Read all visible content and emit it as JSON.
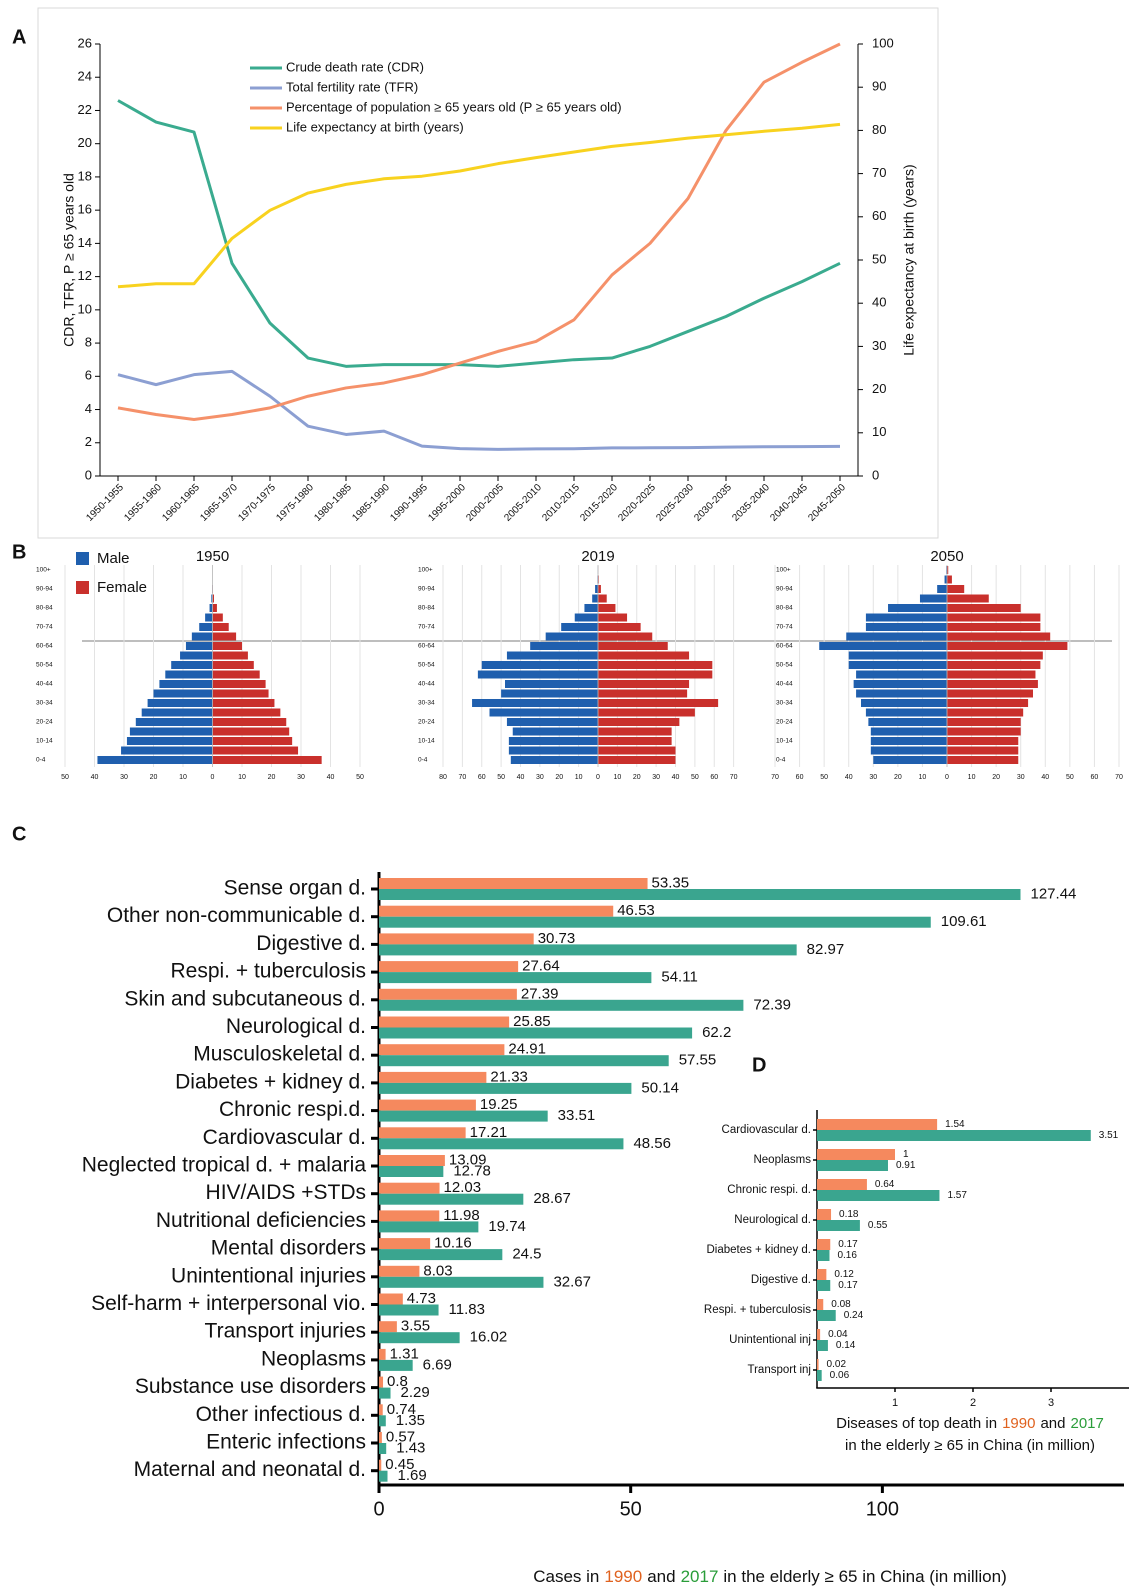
{
  "chart_data": [
    {
      "type": "line",
      "panel": "A",
      "categories": [
        "1950-1955",
        "1955-1960",
        "1960-1965",
        "1965-1970",
        "1970-1975",
        "1975-1980",
        "1980-1985",
        "1985-1990",
        "1990-1995",
        "1995-2000",
        "2000-2005",
        "2005-2010",
        "2010-2015",
        "2015-2020",
        "2020-2025",
        "2025-2030",
        "2030-2035",
        "2035-2040",
        "2040-2045",
        "2045-2050"
      ],
      "ylabel": "CDR, TFR, P ≥ 65 years old",
      "y2label": "Life expectancy at birth (years)",
      "ylim": [
        0,
        26
      ],
      "yticks": [
        0,
        2,
        4,
        6,
        8,
        10,
        12,
        14,
        16,
        18,
        20,
        22,
        24,
        26
      ],
      "y2lim": [
        0,
        100
      ],
      "y2ticks": [
        0,
        10,
        20,
        30,
        40,
        50,
        60,
        70,
        80,
        90,
        100
      ],
      "series": [
        {
          "name": "Crude death rate (CDR)",
          "color": "#3aab8f",
          "values": [
            22.6,
            21.3,
            20.7,
            12.8,
            9.2,
            7.1,
            6.6,
            6.7,
            6.7,
            6.7,
            6.6,
            6.8,
            7.0,
            7.1,
            7.8,
            8.7,
            9.6,
            10.7,
            11.7,
            12.8
          ]
        },
        {
          "name": "Total fertility rate (TFR)",
          "color": "#8c9fd2",
          "values": [
            6.1,
            5.5,
            6.1,
            6.3,
            4.8,
            3.0,
            2.5,
            2.7,
            1.8,
            1.65,
            1.6,
            1.63,
            1.64,
            1.69,
            1.7,
            1.71,
            1.74,
            1.76,
            1.77,
            1.78
          ]
        },
        {
          "name": "Percentage of population ≥ 65 years old (P ≥ 65 years old)",
          "color": "#f5916a",
          "values": [
            4.1,
            3.7,
            3.4,
            3.7,
            4.1,
            4.8,
            5.3,
            5.6,
            6.1,
            6.8,
            7.5,
            8.1,
            9.4,
            12.1,
            14.0,
            16.7,
            20.8,
            23.7,
            24.9,
            26.0
          ]
        },
        {
          "name": "Life expectancy at birth (years)",
          "color": "#f8d21f",
          "axis": "y2",
          "values": [
            43.8,
            44.5,
            44.5,
            55.0,
            61.5,
            65.5,
            67.5,
            68.8,
            69.4,
            70.6,
            72.3,
            73.7,
            75.0,
            76.3,
            77.2,
            78.2,
            79.0,
            79.8,
            80.5,
            81.4
          ]
        }
      ]
    },
    {
      "type": "pyramid",
      "panel": "B",
      "categories": [
        "0-4",
        null,
        "10-14",
        null,
        "20-24",
        null,
        "30-34",
        null,
        "40-44",
        null,
        "50-54",
        null,
        "60-64",
        null,
        "70-74",
        null,
        "80-84",
        null,
        "90-94",
        null,
        "100+"
      ],
      "series": [
        {
          "name": "Male",
          "color": "#1f5fae"
        },
        {
          "name": "Female",
          "color": "#c9302c"
        }
      ],
      "pyramids": [
        {
          "title": "1950",
          "xlim": [
            -50,
            50
          ],
          "xticks": [
            {
              "value": -50,
              "label": "50"
            },
            {
              "value": -40,
              "label": "40"
            },
            {
              "value": -30,
              "label": "30"
            },
            {
              "value": -20,
              "label": "20"
            },
            {
              "value": -10,
              "label": "10"
            },
            0,
            10,
            20,
            30,
            40,
            50
          ],
          "values": [
            [
              -39,
              -31,
              -29,
              -28,
              -26,
              -24,
              -22,
              -20,
              -18,
              -16,
              -14,
              -11,
              -9,
              -7,
              -4.5,
              -2.5,
              -1,
              -0.4,
              -0.1,
              0,
              0
            ],
            [
              37,
              29,
              27,
              26,
              25,
              23,
              21,
              19,
              18,
              16,
              14,
              12,
              10,
              8,
              5.5,
              3.5,
              1.5,
              0.5,
              0.1,
              0,
              0
            ]
          ]
        },
        {
          "title": "2019",
          "xlim": [
            -80,
            80
          ],
          "xticks": [
            {
              "value": -80,
              "label": "80"
            },
            {
              "value": -70,
              "label": "70"
            },
            {
              "value": -60,
              "label": "60"
            },
            {
              "value": -50,
              "label": "50"
            },
            {
              "value": -40,
              "label": "40"
            },
            {
              "value": -30,
              "label": "30"
            },
            {
              "value": -20,
              "label": "20"
            },
            {
              "value": -10,
              "label": "10"
            },
            0,
            10,
            20,
            30,
            40,
            50,
            60,
            70
          ],
          "values": [
            [
              -45,
              -46,
              -46,
              -44,
              -47,
              -56,
              -65,
              -50,
              -48,
              -62,
              -60,
              -47,
              -35,
              -27,
              -19,
              -12,
              -7,
              -3,
              -1.5,
              -0.3,
              -0.1
            ],
            [
              40,
              40,
              38,
              38,
              42,
              50,
              62,
              46,
              47,
              59,
              59,
              47,
              36,
              28,
              22,
              15,
              9,
              4.5,
              1.5,
              0.4,
              0.1
            ]
          ]
        },
        {
          "title": "2050",
          "xlim": [
            -70,
            70
          ],
          "xticks": [
            {
              "value": -70,
              "label": "70"
            },
            {
              "value": -60,
              "label": "60"
            },
            {
              "value": -50,
              "label": "50"
            },
            {
              "value": -40,
              "label": "40"
            },
            {
              "value": -30,
              "label": "30"
            },
            {
              "value": -20,
              "label": "20"
            },
            {
              "value": -10,
              "label": "10"
            },
            0,
            10,
            20,
            30,
            40,
            50,
            60,
            70
          ],
          "values": [
            [
              -30,
              -31,
              -31,
              -31,
              -32,
              -33,
              -35,
              -37,
              -38,
              -37,
              -40,
              -40,
              -52,
              -41,
              -33,
              -33,
              -24,
              -11,
              -4,
              -1,
              -0.3
            ],
            [
              29,
              29,
              29,
              30,
              30,
              31,
              33,
              35,
              37,
              36,
              38,
              39,
              49,
              42,
              38,
              38,
              30,
              17,
              7,
              2,
              0.5
            ]
          ]
        }
      ]
    },
    {
      "type": "hbar",
      "panel": "C",
      "categories": [
        "Sense organ d.",
        "Other non-communicable d.",
        "Digestive d.",
        "Respi. + tuberculosis",
        "Skin and subcutaneous d.",
        "Neurological d.",
        "Musculoskeletal d.",
        "Diabetes + kidney d.",
        "Chronic respi.d.",
        "Cardiovascular d.",
        "Neglected tropical d. + malaria",
        "HIV/AIDS +STDs",
        "Nutritional deficiencies",
        "Mental disorders",
        "Unintentional injuries",
        "Self-harm + interpersonal vio.",
        "Transport injuries",
        "Neoplasms",
        "Substance use disorders",
        "Other infectious d.",
        "Enteric infections",
        "Maternal and neonatal d."
      ],
      "series": [
        {
          "name": "1990",
          "color": "#f5895e",
          "label_color": "#e0621f",
          "values": [
            53.35,
            46.53,
            30.73,
            27.64,
            27.39,
            25.85,
            24.91,
            21.33,
            19.25,
            17.21,
            13.09,
            12.03,
            11.98,
            10.16,
            8.03,
            4.73,
            3.55,
            1.31,
            0.8,
            0.74,
            0.57,
            0.45
          ]
        },
        {
          "name": "2017",
          "color": "#3aa58f",
          "label_color": "#2a9d3a",
          "values": [
            127.44,
            109.61,
            82.97,
            54.11,
            72.39,
            62.2,
            57.55,
            50.14,
            33.51,
            48.56,
            12.78,
            28.67,
            19.74,
            24.5,
            32.67,
            11.83,
            16.02,
            6.69,
            2.29,
            1.35,
            1.43,
            1.69
          ]
        }
      ],
      "xlim": [
        0,
        148
      ],
      "xticks": [
        0,
        50,
        100
      ],
      "xlabel": [
        "Cases in",
        "and",
        "in the elderly ≥ 65 in China (in million)"
      ]
    },
    {
      "type": "hbar",
      "panel": "D",
      "categories": [
        "Cardiovascular d.",
        "Neoplasms",
        "Chronic respi. d.",
        "Neurological d.",
        "Diabetes + kidney d.",
        "Digestive d.",
        "Respi. + tuberculosis",
        "Unintentional inj",
        "Transport inj"
      ],
      "series": [
        {
          "name": "1990",
          "color": "#f5895e",
          "label_color": "#e0621f",
          "values": [
            1.54,
            1,
            0.64,
            0.18,
            0.17,
            0.12,
            0.08,
            0.04,
            0.02
          ]
        },
        {
          "name": "2017",
          "color": "#3aa58f",
          "label_color": "#2a9d3a",
          "values": [
            3.51,
            0.91,
            1.57,
            0.55,
            0.16,
            0.17,
            0.24,
            0.14,
            0.06
          ]
        }
      ],
      "xlim": [
        0,
        4
      ],
      "xticks": [
        1,
        2,
        3
      ],
      "xlabel": [
        "Diseases of top death in",
        "and",
        "in the elderly ≥ 65 in China (in million)"
      ]
    }
  ]
}
